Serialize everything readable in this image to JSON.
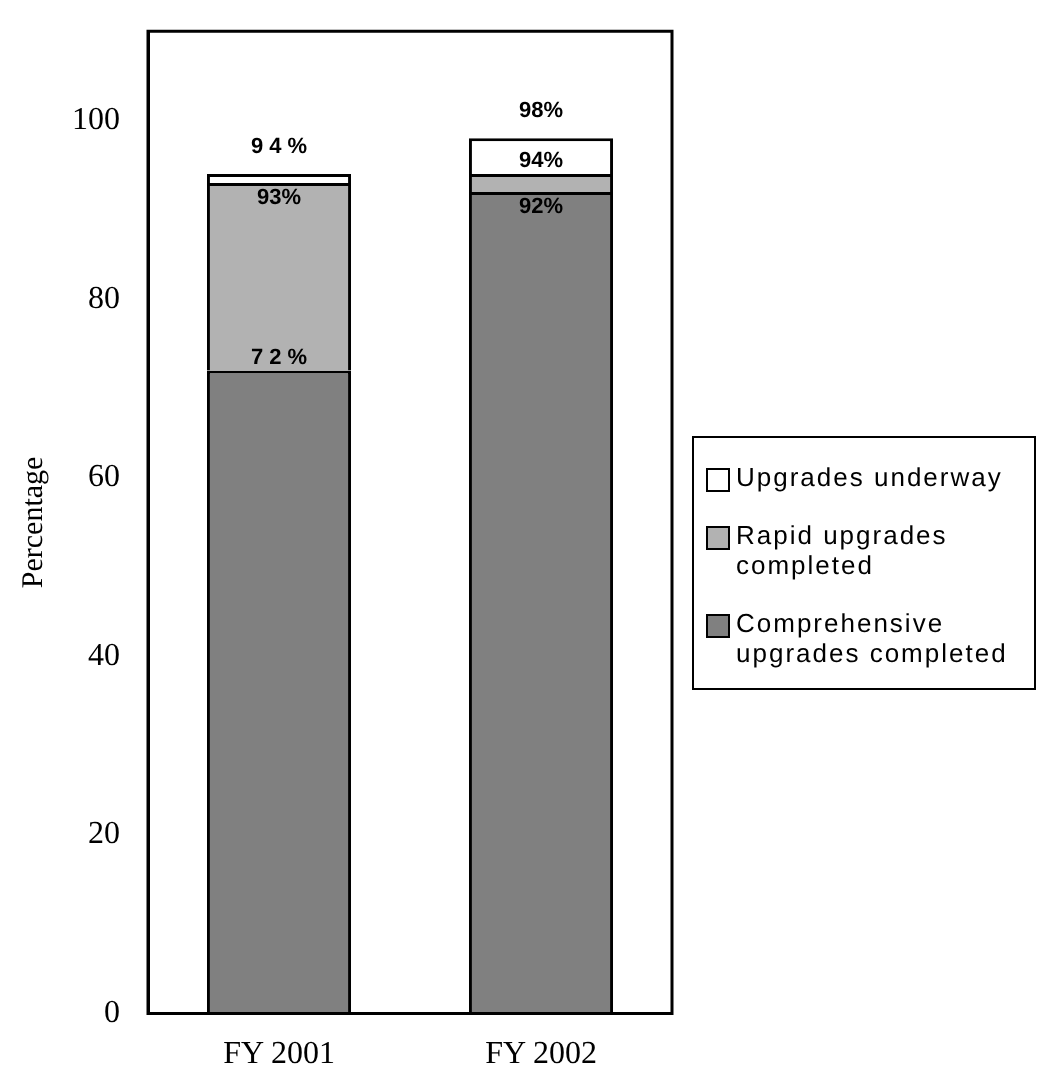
{
  "chart_data": {
    "type": "bar",
    "stacked": true,
    "ylabel": "Percentage",
    "categories": [
      "FY 2001",
      "FY 2002"
    ],
    "series": [
      {
        "name": "Comprehensive upgrades completed",
        "color": "#808080",
        "values": [
          72,
          92
        ]
      },
      {
        "name": "Rapid upgrades completed",
        "color": "#b2b2b2",
        "values": [
          21,
          2
        ]
      },
      {
        "name": "Upgrades underway",
        "color": "#ffffff",
        "values": [
          1,
          4
        ]
      }
    ],
    "annotations": [
      {
        "text": "7 2 %",
        "x": "FY 2001",
        "y": 72
      },
      {
        "text": "93%",
        "x": "FY 2001",
        "y": 93
      },
      {
        "text": "9 4 %",
        "x": "FY 2001",
        "y": 94
      },
      {
        "text": "92%",
        "x": "FY 2002",
        "y": 92
      },
      {
        "text": "94%",
        "x": "FY 2002",
        "y": 94
      },
      {
        "text": "98%",
        "x": "FY 2002",
        "y": 98
      }
    ],
    "ylim": [
      0,
      110
    ],
    "yticks": [
      0,
      20,
      40,
      60,
      80,
      100
    ],
    "grid": false,
    "legend": "right"
  }
}
